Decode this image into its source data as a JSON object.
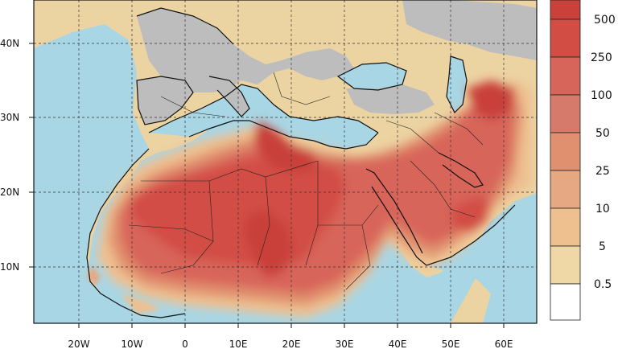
{
  "map": {
    "lat_labels": [
      "40N",
      "30N",
      "20N",
      "10N"
    ],
    "lon_labels": [
      "20W",
      "10W",
      "0",
      "10E",
      "20E",
      "30E",
      "40E",
      "50E",
      "60E"
    ]
  },
  "legend": {
    "levels": [
      "500",
      "250",
      "100",
      "50",
      "25",
      "10",
      "5",
      "0.5"
    ],
    "colors": [
      "#c9413a",
      "#d24e45",
      "#d8655a",
      "#d67a6c",
      "#e0906e",
      "#e6a883",
      "#eec090",
      "#efd8a6",
      "#ffffff"
    ]
  },
  "colors": {
    "ocean": "#a9d6e4",
    "nodata": "#bdbdbd",
    "low": "#ecd3a2",
    "border": "#111111"
  }
}
